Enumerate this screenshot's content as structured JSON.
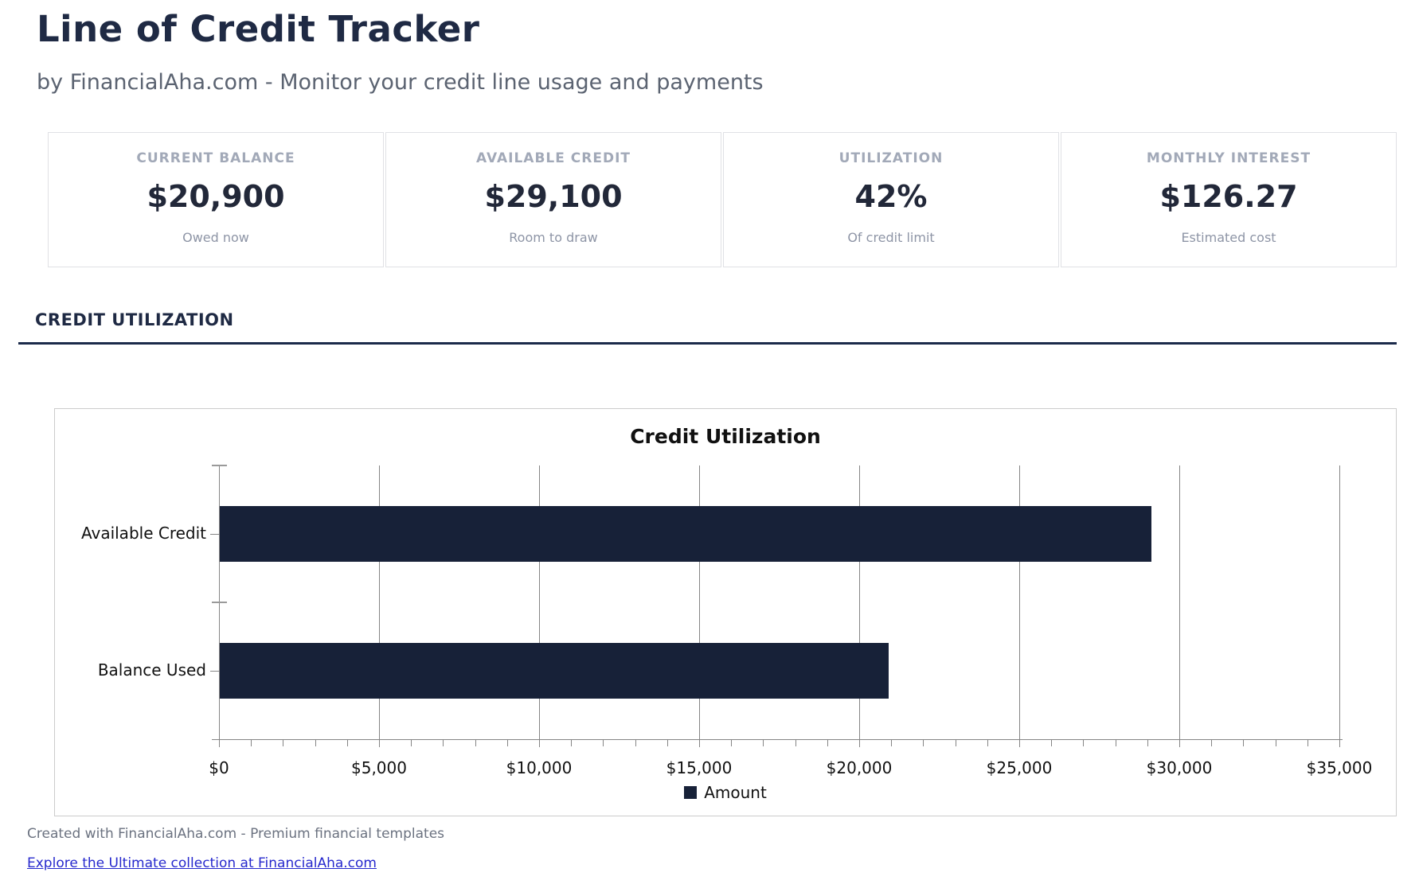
{
  "header": {
    "title": "Line of Credit Tracker",
    "subtitle": "by FinancialAha.com - Monitor your credit line usage and payments"
  },
  "stats": [
    {
      "label": "CURRENT BALANCE",
      "value": "$20,900",
      "sublabel": "Owed now"
    },
    {
      "label": "AVAILABLE CREDIT",
      "value": "$29,100",
      "sublabel": "Room to draw"
    },
    {
      "label": "UTILIZATION",
      "value": "42%",
      "sublabel": "Of credit limit"
    },
    {
      "label": "MONTHLY INTEREST",
      "value": "$126.27",
      "sublabel": "Estimated cost"
    }
  ],
  "section": {
    "title": "CREDIT UTILIZATION"
  },
  "chart_data": {
    "type": "bar",
    "orientation": "horizontal",
    "title": "Credit Utilization",
    "categories": [
      "Available Credit",
      "Balance Used"
    ],
    "values": [
      29100,
      20900
    ],
    "series_name": "Amount",
    "xlim": [
      0,
      35000
    ],
    "x_major_step": 5000,
    "x_minor_step": 1000,
    "tick_prefix": "$",
    "grid": true,
    "legend_position": "bottom",
    "bar_color": "#172138"
  },
  "footer": {
    "created": "Created with FinancialAha.com - Premium financial templates",
    "link": "Explore the Ultimate collection at FinancialAha.com"
  },
  "colors": {
    "accent_navy": "#1f2a44",
    "bar_navy": "#172138",
    "link_blue": "#2628cd",
    "muted_gray": "#6b7280"
  }
}
